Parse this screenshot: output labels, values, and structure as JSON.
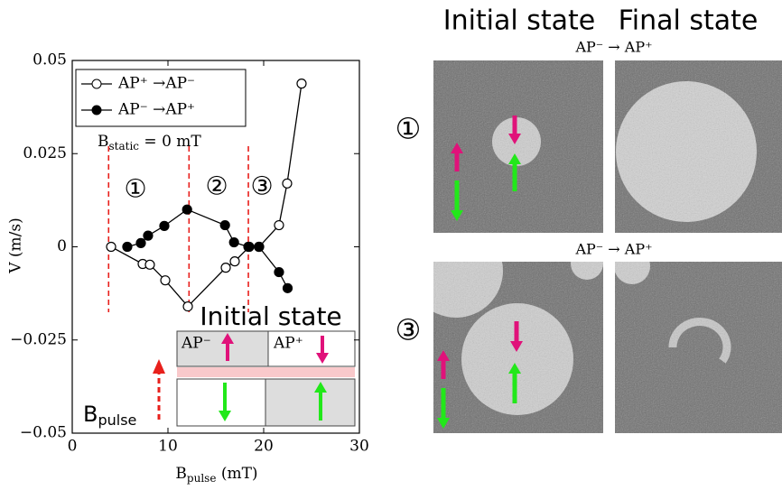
{
  "chart_data": {
    "type": "line",
    "xlabel": {
      "symbol": "B",
      "subscript": "pulse",
      "text": " (mT)"
    },
    "ylabel": "V (m/s)",
    "xlim": [
      0,
      30
    ],
    "ylim": [
      -0.05,
      0.05
    ],
    "xticks": [
      0,
      10,
      20,
      30
    ],
    "yticks": [
      {
        "value": -0.05,
        "label": "−0.05"
      },
      {
        "value": -0.025,
        "label": "−0.025"
      },
      0,
      0.025,
      0.05
    ],
    "legend": "upper left",
    "series": [
      {
        "name": "AP⁺ →AP⁻",
        "marker": "open",
        "color": "#000000",
        "x": [
          4.06,
          7.36,
          8.11,
          9.72,
          12.08,
          16.04,
          16.98,
          18.49,
          19.53,
          21.6,
          22.45,
          23.96
        ],
        "values": [
          0,
          -0.0046,
          -0.0048,
          -0.009,
          -0.016,
          -0.0056,
          -0.0039,
          0,
          0,
          0.0058,
          0.017,
          0.0438
        ]
      },
      {
        "name": "AP⁻ →AP⁺",
        "marker": "filled",
        "color": "#000000",
        "x": [
          5.75,
          7.17,
          7.92,
          9.62,
          12.0,
          15.96,
          16.9,
          18.4,
          19.5,
          21.6,
          22.5
        ],
        "values": [
          0,
          0.001,
          0.003,
          0.0056,
          0.01,
          0.0058,
          0.0012,
          0,
          0,
          -0.0068,
          -0.0111
        ]
      }
    ],
    "static_field": {
      "symbol": "B",
      "subscript": "static",
      "text": " = 0 mT"
    },
    "dashed_lines": {
      "color": "#e8201c",
      "x": [
        3.8,
        12.2,
        18.4
      ]
    },
    "region_labels": [
      "①",
      "②",
      "③"
    ]
  },
  "inset": {
    "title": "Initial state",
    "top_left": "AP⁻",
    "top_right": "AP⁺",
    "field_label": {
      "symbol": "B",
      "subscript": "pulse"
    }
  },
  "images": {
    "columns": [
      "Initial state",
      "Final state"
    ],
    "rows": [
      {
        "label": "①",
        "transition": "AP⁻ → AP⁺"
      },
      {
        "label": "③",
        "transition": "AP⁻ → AP⁺"
      }
    ]
  }
}
